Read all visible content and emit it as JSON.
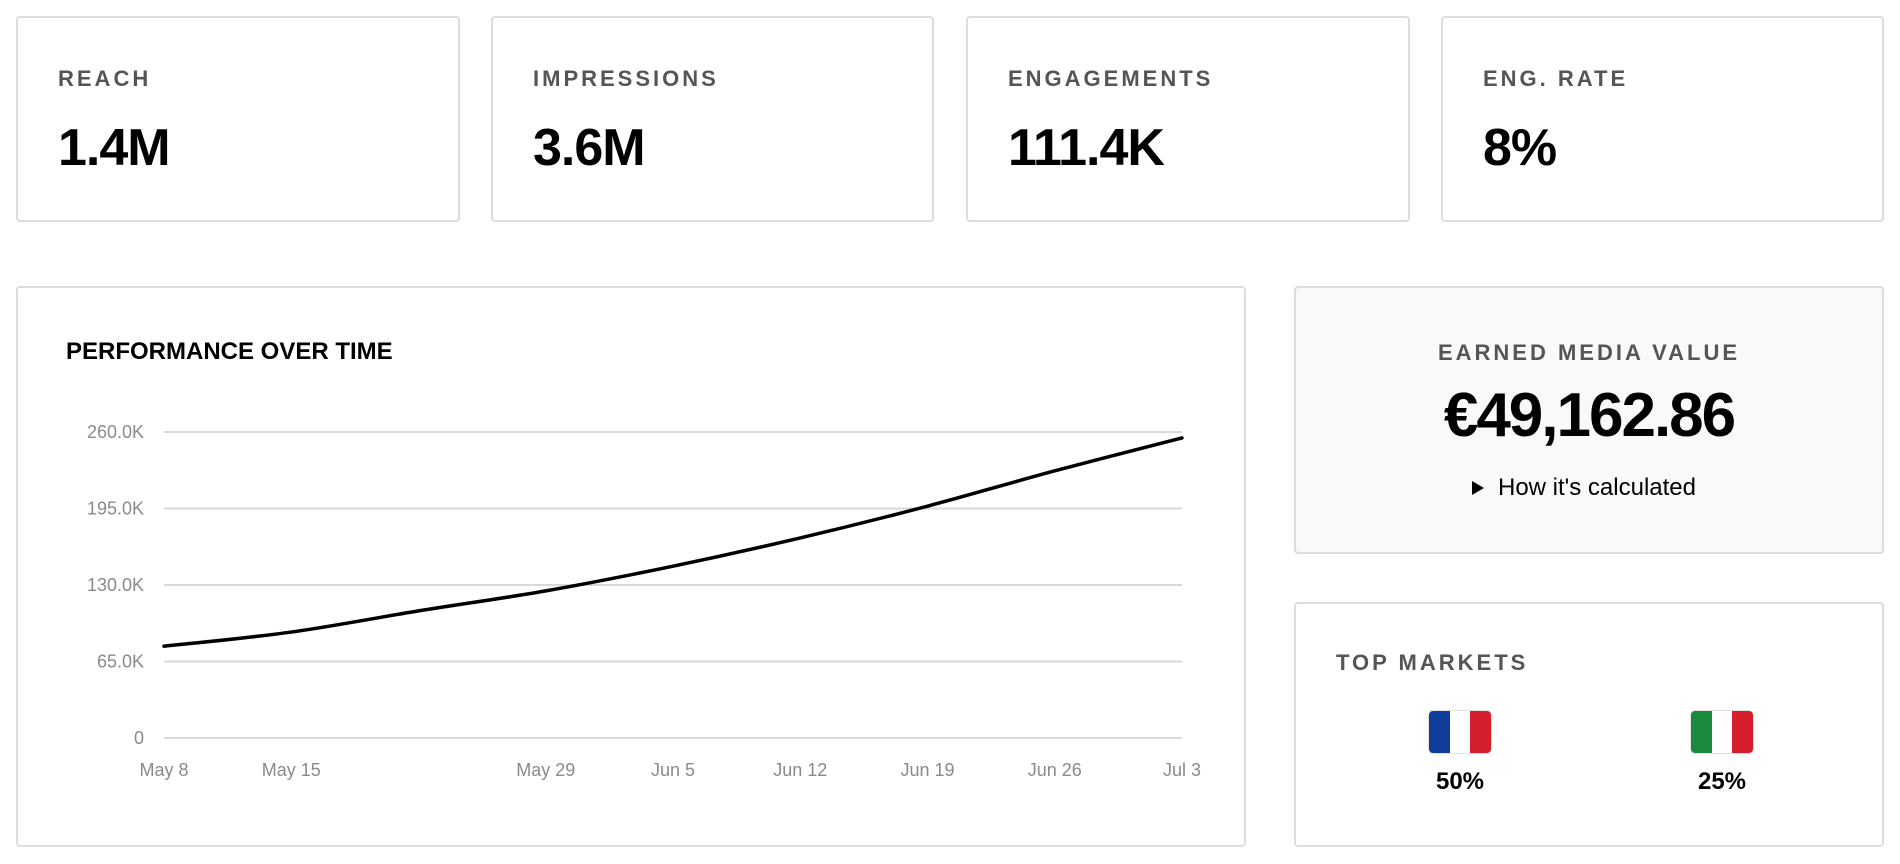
{
  "kpis": [
    {
      "label": "REACH",
      "value": "1.4M"
    },
    {
      "label": "IMPRESSIONS",
      "value": "3.6M"
    },
    {
      "label": "ENGAGEMENTS",
      "value": "111.4K"
    },
    {
      "label": "ENG. RATE",
      "value": "8%"
    }
  ],
  "performance": {
    "title": "PERFORMANCE OVER TIME"
  },
  "chart_data": {
    "type": "line",
    "title": "PERFORMANCE OVER TIME",
    "ylim": [
      0,
      260000
    ],
    "ytick_labels": [
      "0",
      "65.0K",
      "130.0K",
      "195.0K",
      "260.0K"
    ],
    "xlim": [
      "2024-05-08",
      "2024-07-03"
    ],
    "xtick_labels": [
      "May 8",
      "May 15",
      "May 29",
      "Jun 5",
      "Jun 12",
      "Jun 19",
      "Jun 26",
      "Jul 3"
    ],
    "grid": true,
    "series": [
      {
        "color": "#000000",
        "x": [
          "2024-05-08",
          "2024-05-15",
          "2024-05-22",
          "2024-05-29",
          "2024-06-05",
          "2024-06-12",
          "2024-06-19",
          "2024-06-26",
          "2024-07-03"
        ],
        "values": [
          78000,
          90000,
          108000,
          125000,
          146000,
          170000,
          197000,
          227000,
          255000
        ]
      }
    ]
  },
  "emv": {
    "label": "EARNED MEDIA VALUE",
    "value": "€49,162.86",
    "link_text": "How it's calculated"
  },
  "markets": {
    "title": "TOP MARKETS",
    "items": [
      {
        "flag": "france-flag-icon",
        "colors": [
          "#0f3d99",
          "#ffffff",
          "#d61f2c"
        ],
        "percent": "50%"
      },
      {
        "flag": "italy-flag-icon",
        "colors": [
          "#1a8a3c",
          "#ffffff",
          "#d61f2c"
        ],
        "percent": "25%"
      }
    ]
  }
}
